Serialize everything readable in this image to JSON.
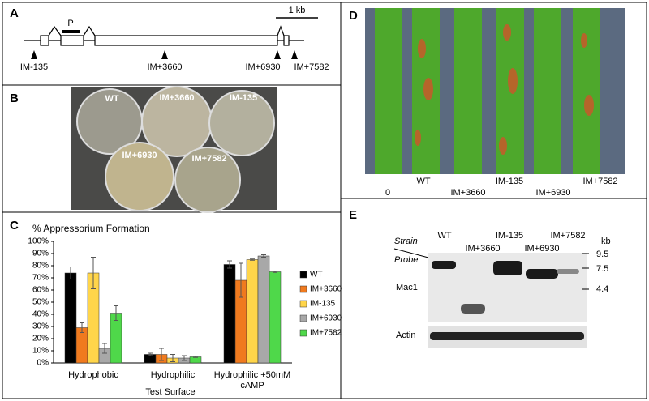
{
  "panel_a": {
    "label": "A",
    "scale": "1 kb",
    "probe": "P",
    "insertions": [
      "IM-135",
      "IM+3660",
      "IM+6930",
      "IM+7582"
    ]
  },
  "panel_b": {
    "label": "B",
    "plates": [
      "WT",
      "IM+3660",
      "IM-135",
      "IM+6930",
      "IM+7582"
    ]
  },
  "chart_data": {
    "panel": "C",
    "type": "bar",
    "title": "% Appressorium Formation",
    "x_label": "Test Surface",
    "categories": [
      "Hydrophobic",
      "Hydrophilic",
      "Hydrophilic +50mM cAMP"
    ],
    "ylim": [
      0,
      100
    ],
    "yticks": [
      {
        "value": 0,
        "label": "0%"
      },
      {
        "value": 10,
        "label": "10%"
      },
      {
        "value": 20,
        "label": "20%"
      },
      {
        "value": 30,
        "label": "30%"
      },
      {
        "value": 40,
        "label": "40%"
      },
      {
        "value": 50,
        "label": "50%"
      },
      {
        "value": 60,
        "label": "60%"
      },
      {
        "value": 70,
        "label": "70%"
      },
      {
        "value": 80,
        "label": "80%"
      },
      {
        "value": 90,
        "label": "90%"
      },
      {
        "value": 100,
        "label": "100%"
      }
    ],
    "grid": false,
    "legend": "right",
    "series": [
      {
        "name": "WT",
        "color": "#000000",
        "values": [
          74,
          7,
          81
        ],
        "errors": [
          5,
          1,
          3
        ]
      },
      {
        "name": "IM+3660",
        "color": "#f07a1e",
        "values": [
          29,
          7,
          68
        ],
        "errors": [
          4,
          5,
          14
        ]
      },
      {
        "name": "IM-135",
        "color": "#ffd54a",
        "values": [
          74,
          4,
          85
        ],
        "errors": [
          13,
          3,
          0.5
        ]
      },
      {
        "name": "IM+6930",
        "color": "#a8a8a8",
        "values": [
          12,
          4,
          88
        ],
        "errors": [
          4,
          2,
          1
        ]
      },
      {
        "name": "IM+7582",
        "color": "#4fd84a",
        "values": [
          41,
          5,
          75
        ],
        "errors": [
          6,
          0.5,
          0.5
        ]
      }
    ]
  },
  "panel_d": {
    "label": "D",
    "lanes": [
      "0",
      "WT",
      "IM+3660",
      "IM-135",
      "IM+6930",
      "IM+7582"
    ]
  },
  "panel_e": {
    "label": "E",
    "strain": "Strain",
    "probe": "Probe",
    "unit": "kb",
    "lanes": [
      "WT",
      "IM+3660",
      "IM-135",
      "IM+6930",
      "IM+7582"
    ],
    "markers": [
      9.5,
      7.5,
      4.4
    ],
    "probes": [
      "Mac1",
      "Actin"
    ]
  }
}
